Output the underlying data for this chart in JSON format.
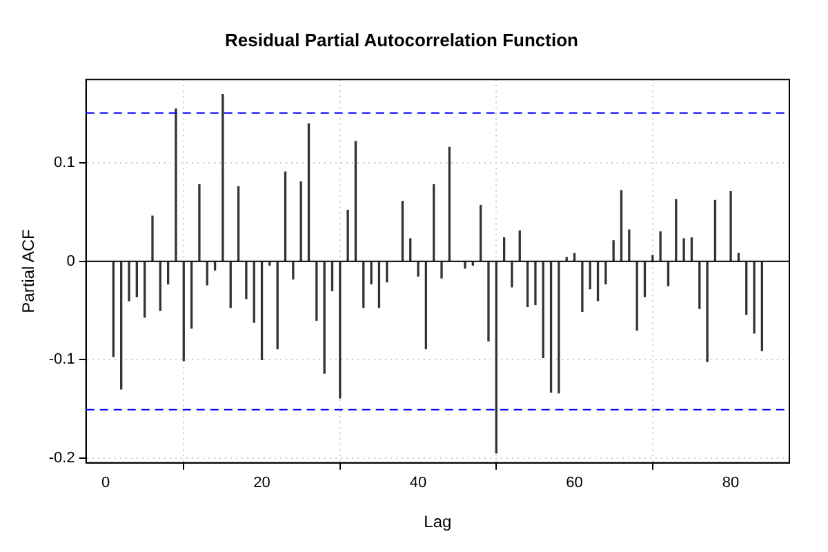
{
  "chart_data": {
    "type": "bar",
    "title": "Residual Partial Autocorrelation Function",
    "xlabel": "Lag",
    "ylabel": "Partial ACF",
    "x": [
      1,
      2,
      3,
      4,
      5,
      6,
      7,
      8,
      9,
      10,
      11,
      12,
      13,
      14,
      15,
      16,
      17,
      18,
      19,
      20,
      21,
      22,
      23,
      24,
      25,
      26,
      27,
      28,
      29,
      30,
      31,
      32,
      33,
      34,
      35,
      36,
      37,
      38,
      39,
      40,
      41,
      42,
      43,
      44,
      45,
      46,
      47,
      48,
      49,
      50,
      51,
      52,
      53,
      54,
      55,
      56,
      57,
      58,
      59,
      60,
      61,
      62,
      63,
      64,
      65,
      66,
      67,
      68,
      69,
      70,
      71,
      72,
      73,
      74,
      75,
      76,
      77,
      78,
      79,
      80,
      81,
      82,
      83,
      84
    ],
    "series": [
      {
        "color": "#333333",
        "values": [
          -0.097,
          -0.13,
          -0.04,
          -0.036,
          -0.057,
          0.046,
          -0.05,
          -0.023,
          0.155,
          -0.101,
          -0.068,
          0.078,
          -0.024,
          -0.009,
          0.17,
          -0.047,
          0.076,
          -0.038,
          -0.062,
          -0.1,
          -0.004,
          -0.089,
          0.091,
          -0.018,
          0.081,
          0.14,
          -0.06,
          -0.114,
          -0.03,
          -0.139,
          0.052,
          0.122,
          -0.047,
          -0.023,
          -0.047,
          -0.021,
          null,
          0.061,
          0.023,
          -0.015,
          -0.089,
          0.078,
          -0.017,
          0.116,
          null,
          -0.007,
          -0.004,
          0.057,
          -0.081,
          -0.195,
          0.024,
          -0.026,
          0.031,
          -0.046,
          -0.044,
          -0.098,
          -0.133,
          -0.134,
          0.004,
          0.008,
          -0.051,
          -0.028,
          -0.04,
          -0.023,
          0.021,
          0.072,
          0.032,
          -0.07,
          -0.036,
          0.006,
          0.03,
          -0.025,
          0.063,
          0.023,
          0.024,
          -0.048,
          -0.102,
          0.062,
          null,
          0.071,
          0.008,
          -0.054,
          -0.073,
          -0.091
        ]
      }
    ],
    "xlim": [
      -2.5,
      87.5
    ],
    "xticks": [
      0,
      20,
      40,
      60,
      80
    ],
    "ylim": [
      -0.205,
      0.185
    ],
    "yticks": [
      -0.2,
      -0.1,
      0.0,
      0.1
    ],
    "ref_lines": [
      {
        "axis": "y",
        "value": 0.151,
        "color": "#0000ff",
        "line_style": "dashed"
      },
      {
        "axis": "y",
        "value": -0.151,
        "color": "#0000ff",
        "line_style": "dashed"
      },
      {
        "axis": "y",
        "value": 0,
        "color": "#000000",
        "line_style": "solid"
      }
    ],
    "grid": true,
    "legend": false
  }
}
